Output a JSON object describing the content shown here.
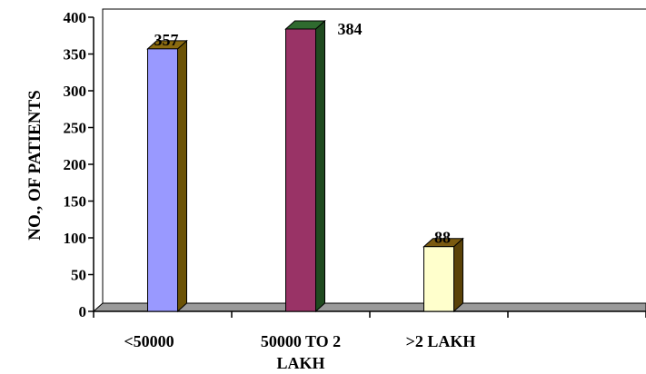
{
  "chart_data": {
    "type": "bar",
    "categories": [
      "<50000",
      "50000  TO 2 LAKH",
      ">2 LAKH"
    ],
    "values": [
      357,
      384,
      88
    ],
    "data_labels": [
      "357",
      "384",
      "88"
    ],
    "title": "",
    "xlabel": "",
    "ylabel": "NO., OF PATIENTS",
    "ylim": [
      0,
      400
    ],
    "yticks": [
      "0",
      "50",
      "100",
      "150",
      "200",
      "250",
      "300",
      "350",
      "400"
    ],
    "style": "3d-column",
    "grid": false,
    "legend": "none",
    "colors": {
      "bar_fronts": [
        "#9999ff",
        "#993366",
        "#ffffcc"
      ],
      "bar_sides": [
        "#6b5205",
        "#1f4a1f",
        "#5a4208"
      ],
      "bar_tops": [
        "#8a6a10",
        "#2f6a2f",
        "#7a5a10"
      ],
      "floor": "#9a9a9a",
      "axis": "#000000"
    }
  }
}
